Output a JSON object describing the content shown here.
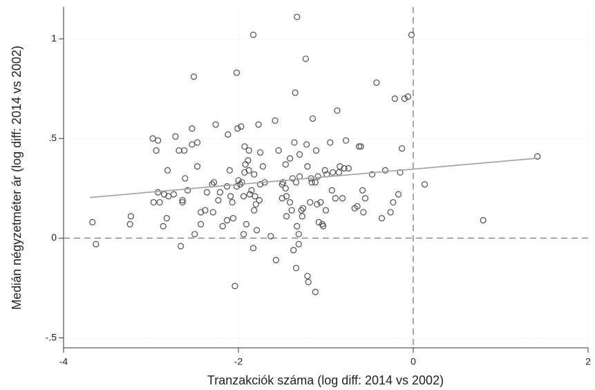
{
  "chart_data": {
    "type": "scatter",
    "x_label": "Tranzakciók száma (log diff: 2014 vs 2002)",
    "y_label": "Medián négyzetméter ár (log diff: 2014 vs 2002)",
    "x": [
      -3.67,
      -3.63,
      -3.23,
      -3.24,
      -2.97,
      -2.98,
      -2.92,
      -2.94,
      -2.92,
      -2.9,
      -2.86,
      -2.82,
      -2.81,
      -2.85,
      -2.8,
      -2.74,
      -2.72,
      -2.66,
      -2.68,
      -2.64,
      -2.64,
      -2.62,
      -2.61,
      -2.58,
      -2.53,
      -2.53,
      -2.51,
      -2.5,
      -2.47,
      -2.47,
      -2.43,
      -2.43,
      -2.38,
      -2.36,
      -2.3,
      -2.29,
      -2.28,
      -2.26,
      -2.23,
      -2.21,
      -2.18,
      -2.13,
      -2.13,
      -2.12,
      -2.1,
      -2.09,
      -2.07,
      -2.06,
      -2.04,
      -2.02,
      -2.02,
      -2.01,
      -2.0,
      -1.98,
      -1.97,
      -1.96,
      -1.94,
      -1.94,
      -1.93,
      -1.93,
      -1.92,
      -1.91,
      -1.89,
      -1.88,
      -1.88,
      -1.87,
      -1.85,
      -1.83,
      -1.83,
      -1.82,
      -1.82,
      -1.81,
      -1.8,
      -1.79,
      -1.77,
      -1.76,
      -1.75,
      -1.75,
      -1.72,
      -1.7,
      -1.63,
      -1.57,
      -1.58,
      -1.54,
      -1.5,
      -1.5,
      -1.49,
      -1.46,
      -1.46,
      -1.45,
      -1.45,
      -1.41,
      -1.41,
      -1.39,
      -1.38,
      -1.37,
      -1.36,
      -1.35,
      -1.34,
      -1.34,
      -1.33,
      -1.33,
      -1.31,
      -1.31,
      -1.3,
      -1.3,
      -1.28,
      -1.27,
      -1.26,
      -1.23,
      -1.22,
      -1.21,
      -1.21,
      -1.2,
      -1.18,
      -1.17,
      -1.16,
      -1.15,
      -1.12,
      -1.12,
      -1.11,
      -1.1,
      -1.09,
      -1.08,
      -1.06,
      -1.04,
      -1.03,
      -1.0,
      -1.01,
      -0.99,
      -0.95,
      -0.93,
      -0.92,
      -0.89,
      -0.87,
      -0.85,
      -0.84,
      -0.81,
      -0.79,
      -0.77,
      -0.74,
      -0.67,
      -0.64,
      -0.62,
      -0.6,
      -0.58,
      -0.57,
      -0.55,
      -0.47,
      -0.42,
      -0.36,
      -0.32,
      -0.26,
      -0.23,
      -0.21,
      -0.17,
      -0.15,
      -0.13,
      -0.1,
      -0.06,
      -0.02,
      0.13,
      0.8,
      1.42
    ],
    "values": [
      0.08,
      -0.03,
      0.11,
      0.07,
      0.18,
      0.5,
      0.49,
      0.44,
      0.23,
      0.18,
      0.06,
      0.1,
      0.34,
      0.22,
      0.21,
      0.22,
      0.51,
      -0.04,
      0.44,
      0.19,
      0.18,
      0.44,
      0.3,
      0.24,
      0.55,
      0.47,
      0.81,
      0.02,
      0.36,
      0.48,
      0.07,
      0.13,
      0.14,
      0.23,
      0.27,
      0.13,
      0.28,
      0.57,
      0.19,
      0.23,
      0.06,
      0.26,
      0.09,
      0.52,
      0.34,
      0.21,
      0.18,
      0.1,
      -0.24,
      0.26,
      0.83,
      0.55,
      0.29,
      0.27,
      0.56,
      0.28,
      0.02,
      0.21,
      0.46,
      0.33,
      0.37,
      0.07,
      0.39,
      0.34,
      0.44,
      0.22,
      0.24,
      -0.05,
      1.02,
      0.14,
      0.32,
      0.21,
      0.17,
      0.04,
      0.57,
      0.19,
      0.43,
      0.27,
      0.36,
      0.28,
      0.01,
      -0.11,
      0.59,
      0.44,
      0.27,
      0.2,
      0.28,
      0.25,
      0.37,
      0.11,
      0.21,
      0.4,
      0.18,
      0.14,
      0.3,
      -0.06,
      0.48,
      0.73,
      -0.15,
      0.28,
      0.06,
      1.11,
      0.02,
      -0.03,
      0.42,
      0.31,
      0.14,
      0.11,
      0.15,
      0.9,
      0.47,
      0.36,
      -0.19,
      -0.22,
      0.18,
      0.3,
      0.28,
      0.6,
      0.28,
      -0.27,
      0.44,
      0.17,
      0.31,
      0.08,
      0.18,
      0.07,
      0.06,
      0.14,
      0.34,
      0.32,
      0.48,
      0.24,
      0.33,
      0.2,
      0.64,
      0.33,
      0.36,
      0.2,
      0.35,
      0.49,
      0.35,
      0.15,
      0.16,
      0.46,
      0.46,
      0.24,
      0.13,
      0.2,
      0.32,
      0.78,
      0.1,
      0.34,
      0.13,
      0.18,
      0.7,
      0.22,
      0.33,
      0.45,
      0.7,
      0.71,
      1.02,
      0.27,
      0.09,
      0.41
    ],
    "color": "#4d4d4d",
    "fit_line": {
      "x": [
        -3.7,
        1.42
      ],
      "values": [
        0.204,
        0.401
      ],
      "color": "#a6a6a6"
    },
    "reference_lines": {
      "x": 0,
      "y": 0
    },
    "xlim": [
      -4,
      2
    ],
    "ylim": [
      -0.55,
      1.16
    ],
    "xticks": [
      -4,
      -2,
      0,
      2
    ],
    "yticks": [
      {
        "value": -0.5,
        "label": "-.5"
      },
      0,
      {
        "value": 0.5,
        "label": ".5"
      },
      1
    ],
    "grid": true
  }
}
